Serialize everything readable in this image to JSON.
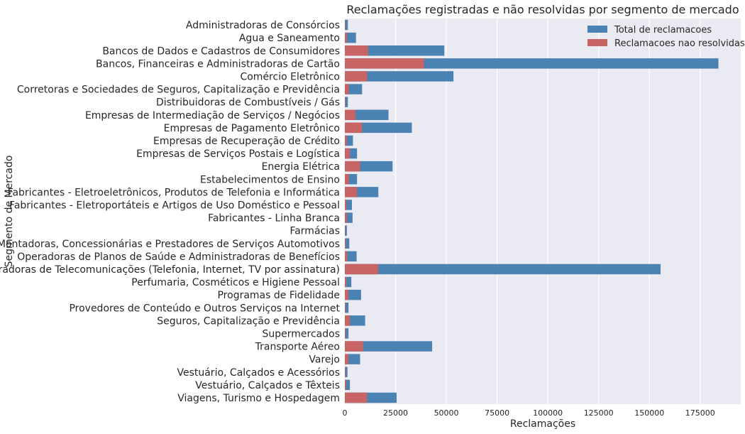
{
  "chart_data": {
    "type": "bar",
    "orientation": "horizontal",
    "title": "Reclamações registradas e não resolvidas por segmento de mercado",
    "xlabel": "Reclamações",
    "ylabel": "Segmento de Mercado",
    "xlim": [
      0,
      195000
    ],
    "xticks": [
      0,
      25000,
      50000,
      75000,
      100000,
      125000,
      150000,
      175000
    ],
    "grid": true,
    "legend_position": "top-right",
    "colors": {
      "background": "#eaeaf2",
      "total": "#4a82b4",
      "unresolved": "#c86464",
      "grid": "#ffffff"
    },
    "categories": [
      "Administradoras de Consórcios",
      "Agua e Saneamento",
      "Bancos de Dados e Cadastros de Consumidores",
      "Bancos, Financeiras e Administradoras de Cartão",
      "Comércio Eletrônico",
      "Corretoras e Sociedades de Seguros, Capitalização e Previdência",
      "Distribuidoras de Combustíveis / Gás",
      "Empresas de Intermediação de Serviços / Negócios",
      "Empresas de Pagamento Eletrônico",
      "Empresas de Recuperação de Crédito",
      "Empresas de Serviços Postais e Logística",
      "Energia Elétrica",
      "Estabelecimentos de Ensino",
      "Fabricantes - Eletroeletrônicos,  Produtos de Telefonia e Informática",
      "Fabricantes - Eletroportáteis e Artigos de Uso Doméstico e Pessoal",
      "Fabricantes - Linha Branca",
      "Farmácias",
      "Montadoras, Concessionárias e Prestadores de Serviços Automotivos",
      "Operadoras de Planos de Saúde e Administradoras de Benefícios",
      "Operadoras de Telecomunicações (Telefonia, Internet, TV por assinatura)",
      "Perfumaria, Cosméticos e Higiene Pessoal",
      "Programas de Fidelidade",
      "Provedores de Conteúdo e Outros Serviços na Internet",
      "Seguros, Capitalização e Previdência",
      "Supermercados",
      "Transporte Aéreo",
      "Varejo",
      "Vestuário, Calçados e Acessórios",
      "Vestuário, Calçados e Têxteis",
      "Viagens, Turismo e Hospedagem"
    ],
    "series": [
      {
        "name": "Total de reclamacoes",
        "values": [
          1500,
          5500,
          49000,
          184000,
          53500,
          8500,
          1500,
          21500,
          33000,
          4000,
          6000,
          23500,
          6000,
          16500,
          3500,
          3800,
          1000,
          2200,
          5800,
          155500,
          3200,
          8000,
          1800,
          10000,
          1800,
          43000,
          7500,
          1300,
          2500,
          25500
        ]
      },
      {
        "name": "Reclamacoes nao resolvidas",
        "values": [
          300,
          1000,
          11500,
          39000,
          11000,
          2000,
          300,
          5300,
          8500,
          1000,
          2500,
          7500,
          2000,
          6000,
          800,
          1000,
          200,
          500,
          1200,
          16500,
          800,
          1800,
          400,
          2500,
          400,
          9000,
          1800,
          300,
          600,
          11000
        ]
      }
    ]
  }
}
